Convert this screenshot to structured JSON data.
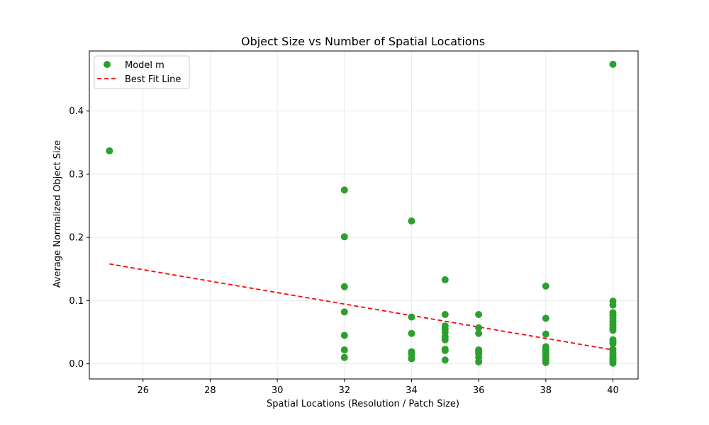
{
  "chart_data": {
    "type": "scatter",
    "title": "Object Size vs Number of Spatial Locations",
    "xlabel": "Spatial Locations (Resolution / Patch Size)",
    "ylabel": "Average Normalized Object Size",
    "xlim": [
      24.4,
      40.75
    ],
    "ylim": [
      -0.024,
      0.495
    ],
    "xticks": [
      26,
      28,
      30,
      32,
      34,
      36,
      38,
      40
    ],
    "yticks": [
      0.0,
      0.1,
      0.2,
      0.3,
      0.4
    ],
    "ytick_labels": [
      "0.0",
      "0.1",
      "0.2",
      "0.3",
      "0.4"
    ],
    "grid": true,
    "legend_position": "upper-left",
    "colors": {
      "scatter": "#2ca02c",
      "fit_line": "#ff0000",
      "grid": "#e6e6e6",
      "axis": "#000000"
    },
    "series": [
      {
        "name": "Model m",
        "kind": "scatter",
        "points": [
          [
            25,
            0.337
          ],
          [
            32,
            0.275
          ],
          [
            32,
            0.201
          ],
          [
            32,
            0.122
          ],
          [
            32,
            0.082
          ],
          [
            32,
            0.045
          ],
          [
            32,
            0.022
          ],
          [
            32,
            0.01
          ],
          [
            34,
            0.226
          ],
          [
            34,
            0.074
          ],
          [
            34,
            0.048
          ],
          [
            34,
            0.019
          ],
          [
            34,
            0.016
          ],
          [
            34,
            0.009
          ],
          [
            34,
            0.008
          ],
          [
            35,
            0.133
          ],
          [
            35,
            0.078
          ],
          [
            35,
            0.06
          ],
          [
            35,
            0.055
          ],
          [
            35,
            0.05
          ],
          [
            35,
            0.043
          ],
          [
            35,
            0.038
          ],
          [
            35,
            0.023
          ],
          [
            35,
            0.021
          ],
          [
            35,
            0.006
          ],
          [
            36,
            0.078
          ],
          [
            36,
            0.057
          ],
          [
            36,
            0.048
          ],
          [
            36,
            0.022
          ],
          [
            36,
            0.019
          ],
          [
            36,
            0.016
          ],
          [
            36,
            0.01
          ],
          [
            36,
            0.003
          ],
          [
            38,
            0.123
          ],
          [
            38,
            0.072
          ],
          [
            38,
            0.047
          ],
          [
            38,
            0.027
          ],
          [
            38,
            0.023
          ],
          [
            38,
            0.019
          ],
          [
            38,
            0.015
          ],
          [
            38,
            0.011
          ],
          [
            38,
            0.006
          ],
          [
            38,
            0.002
          ],
          [
            40,
            0.474
          ],
          [
            40,
            0.099
          ],
          [
            40,
            0.093
          ],
          [
            40,
            0.081
          ],
          [
            40,
            0.077
          ],
          [
            40,
            0.072
          ],
          [
            40,
            0.067
          ],
          [
            40,
            0.062
          ],
          [
            40,
            0.057
          ],
          [
            40,
            0.053
          ],
          [
            40,
            0.038
          ],
          [
            40,
            0.035
          ],
          [
            40,
            0.032
          ],
          [
            40,
            0.023
          ],
          [
            40,
            0.018
          ],
          [
            40,
            0.014
          ],
          [
            40,
            0.01
          ],
          [
            40,
            0.007
          ],
          [
            40,
            0.004
          ],
          [
            40,
            0.001
          ]
        ]
      },
      {
        "name": "Best Fit Line",
        "kind": "line",
        "style": "dashed",
        "points": [
          [
            25,
            0.158
          ],
          [
            40,
            0.022
          ]
        ]
      }
    ]
  }
}
